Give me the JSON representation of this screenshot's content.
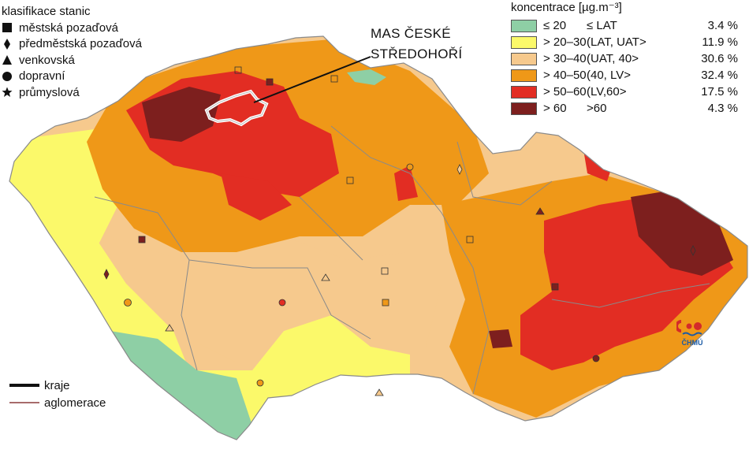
{
  "stations_legend": {
    "title": "klasifikace stanic",
    "items": [
      {
        "label": "městská pozaďová",
        "icon": "square-icon"
      },
      {
        "label": "předměstská pozaďová",
        "icon": "diamond-icon"
      },
      {
        "label": "venkovská",
        "icon": "triangle-icon"
      },
      {
        "label": "dopravní",
        "icon": "circle-icon"
      },
      {
        "label": "průmyslová",
        "icon": "star-icon"
      }
    ]
  },
  "concentration_legend": {
    "title": "koncentrace [µg.m⁻³]",
    "classes": [
      {
        "range": "≤ 20",
        "limit": "≤ LAT",
        "percent": "3.4 %",
        "color": "#8ecfa5"
      },
      {
        "range": "> 20–30",
        "limit": "(LAT, UAT>",
        "percent": "11.9 %",
        "color": "#fbf96a"
      },
      {
        "range": "> 30–40",
        "limit": "(UAT, 40>",
        "percent": "30.6 %",
        "color": "#f6c98d"
      },
      {
        "range": "> 40–50",
        "limit": "(40, LV>",
        "percent": "32.4 %",
        "color": "#ef9818"
      },
      {
        "range": "> 50–60",
        "limit": "(LV,60>",
        "percent": "17.5 %",
        "color": "#e22d23"
      },
      {
        "range": "> 60",
        "limit": ">60",
        "percent": "4.3 %",
        "color": "#7d1f1e"
      }
    ]
  },
  "callout": {
    "line1": "MAS ČESKÉ",
    "line2": "STŘEDOHOŘÍ"
  },
  "lines_legend": {
    "items": [
      {
        "label": "kraje",
        "color": "#111111"
      },
      {
        "label": "aglomerace",
        "color": "#8a3a3a"
      }
    ]
  },
  "logo": {
    "text": "ČHMÚ"
  }
}
